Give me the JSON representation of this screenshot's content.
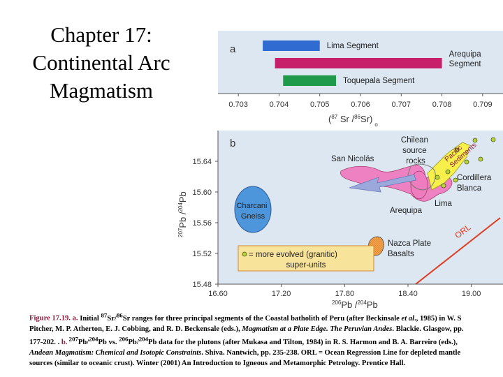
{
  "slide": {
    "title_lines": [
      "Chapter 17:",
      "Continental Arc",
      "Magmatism"
    ]
  },
  "colors": {
    "panel_bg": "#dce7f2",
    "lima": "#2f6bd0",
    "arequipa": "#c81f6a",
    "toquepala": "#1e9a4a",
    "pink_field": "#f07cc0",
    "yellow_field": "#f7f04a",
    "charcani": "#4d96dc",
    "orl_line": "#e23a1e",
    "arrow": "#9aa8dc",
    "evolved_dot": "#b8d43a"
  },
  "chart_data": [
    {
      "type": "bar",
      "panel_label": "a",
      "orientation": "horizontal-range",
      "xlabel_base": "(",
      "xlabel_sup1": "87",
      "xlabel_mid": " Sr /",
      "xlabel_sup2": "86",
      "xlabel_end": "Sr)",
      "xlabel_suffix": "o",
      "xlim": [
        0.7025,
        0.7095
      ],
      "x_ticks": [
        "0.703",
        "0.704",
        "0.705",
        "0.706",
        "0.707",
        "0.708",
        "0.709"
      ],
      "x_tick_values": [
        0.703,
        0.704,
        0.705,
        0.706,
        0.707,
        0.708,
        0.709
      ],
      "series": [
        {
          "name": "Lima Segment",
          "range": [
            0.7036,
            0.705
          ],
          "label_lines": [
            "Lima Segment"
          ]
        },
        {
          "name": "Arequipa Segment",
          "range": [
            0.7039,
            0.708
          ],
          "label_lines": [
            "Arequipa",
            "Segment"
          ]
        },
        {
          "name": "Toquepala Segment",
          "range": [
            0.7041,
            0.7054
          ],
          "label_lines": [
            "Toquepala Segment"
          ]
        }
      ]
    },
    {
      "type": "scatter",
      "panel_label": "b",
      "xlabel_sup1": "206",
      "xlabel_main": "Pb /",
      "xlabel_sup2": "204",
      "xlabel_end": "Pb",
      "ylabel_sup1": "207",
      "ylabel_main": "Pb /",
      "ylabel_sup2": "204",
      "ylabel_end": "Pb",
      "xlim": [
        16.6,
        19.3
      ],
      "ylim": [
        15.48,
        15.68
      ],
      "x_ticks": [
        "16.60",
        "17.20",
        "17.80",
        "18.40",
        "19.00"
      ],
      "x_tick_values": [
        16.6,
        17.2,
        17.8,
        18.4,
        19.0
      ],
      "y_ticks": [
        "15.48",
        "15.52",
        "15.56",
        "15.60",
        "15.64"
      ],
      "y_tick_values": [
        15.48,
        15.52,
        15.56,
        15.6,
        15.64
      ],
      "annotations": {
        "chilean": [
          "Chilean",
          "source",
          "rocks"
        ],
        "pacific": [
          "Pacific",
          "Sediments"
        ],
        "san_nicolas": "San Nicolás",
        "cordillera": [
          "Cordillera",
          "Blanca"
        ],
        "lima": "Lima",
        "arequipa": "Arequipa",
        "charcani": [
          "Charcani",
          "Gneiss"
        ],
        "orl": "ORL",
        "nazca": [
          "Nazca Plate",
          "Basalts"
        ],
        "legend": [
          "= more evolved (granitic)",
          "super-units"
        ]
      }
    }
  ],
  "caption": {
    "fig_label": "Figure 17.19. a.",
    "p1": " Initial ",
    "sup87": "87",
    "p2": "Sr/",
    "sup86": "86",
    "p3": "Sr ranges for three principal segments of the Coastal batholith of Peru (after Beckinsale ",
    "etal1": "et al",
    "p4": "., 1985) in W. S Pitcher, M. P. Atherton, E. J. Cobbing, and R. D. Beckensale (eds.), ",
    "book1": "Magmatism at a Plate Edge. The Peruvian Andes",
    "p5": ". Blackie. Glasgow, pp. 177-202. . ",
    "b_label": "b.",
    "sup207": " 207",
    "p6": "Pb/",
    "sup204a": "204",
    "p7": "Pb vs. ",
    "sup206": "206",
    "p8": "Pb/",
    "sup204b": "204",
    "p9": "Pb data for the plutons (after Mukasa and Tilton, 1984) in R. S. Harmon and B. A. Barreiro (eds.), ",
    "book2": "Andean Magmatism: Chemical and Isotopic Constraints",
    "p10": ". Shiva. Nantwich, pp. 235-238. ORL = Ocean Regression Line for depleted mantle sources (similar to oceanic crust).  Winter (2001) An Introduction to Igneous and Metamorphic Petrology. Prentice Hall."
  }
}
